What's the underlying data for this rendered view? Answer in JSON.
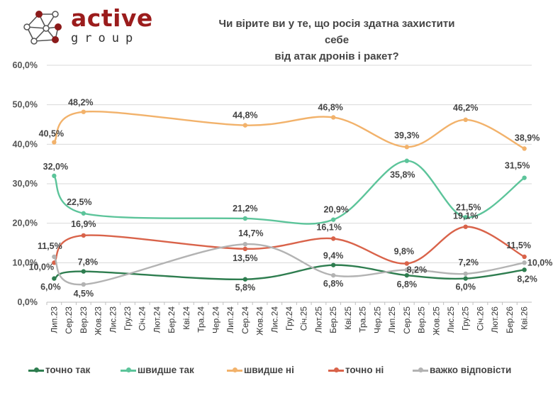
{
  "logo": {
    "word": "active",
    "sub": "group"
  },
  "chart_data": {
    "type": "line",
    "title": "Чи вірите ви у те, що росія здатна захистити себе від атак дронів і ракет?",
    "title_lines": [
      "Чи вірите ви у те, що росія здатна захистити себе",
      "від атак дронів і ракет?"
    ],
    "categories": [
      "Лип.23",
      "Сер.23",
      "Вер.23",
      "Жов.23",
      "Лис.23",
      "Гру.23",
      "Січ.24",
      "Лют.24",
      "Бер.24",
      "Кві.24",
      "Тра.24",
      "Чер.24",
      "Лип.24",
      "Сер.24",
      "Жов.24",
      "Лис.24",
      "Гру.24",
      "Січ.25",
      "Лют.25",
      "Бер.25",
      "Кві.25",
      "Тра.25",
      "Чер.25",
      "Лип.25",
      "Сер.25",
      "Вер.25",
      "Жов.25",
      "Лис.25",
      "Гру.25",
      "Січ.26",
      "Лют.26",
      "Бер.26",
      "Кві.26"
    ],
    "yticks": [
      "0,0%",
      "10,0%",
      "20,0%",
      "30,0%",
      "40,0%",
      "50,0%",
      "60,0%"
    ],
    "ylim": [
      0,
      60
    ],
    "grid": true,
    "legend_position": "bottom",
    "series": [
      {
        "name": "точно так",
        "color": "#2e7d4f",
        "x": [
          "Лип.23",
          "Вер.23",
          "Сер.24",
          "Бер.25",
          "Сер.25",
          "Гру.25",
          "Кві.26"
        ],
        "values": [
          6.0,
          7.8,
          5.8,
          9.4,
          6.8,
          6.0,
          8.2
        ],
        "labels": [
          "6,0%",
          "7,8%",
          "5,8%",
          "9,4%",
          "6,8%",
          "6,0%",
          "8,2%"
        ]
      },
      {
        "name": "швидше так",
        "color": "#5cc49a",
        "x": [
          "Лип.23",
          "Вер.23",
          "Сер.24",
          "Бер.25",
          "Сер.25",
          "Гру.25",
          "Кві.26"
        ],
        "values": [
          32.0,
          22.5,
          21.2,
          20.9,
          35.8,
          21.5,
          31.5
        ],
        "labels": [
          "32,0%",
          "22,5%",
          "21,2%",
          "20,9%",
          "35,8%",
          "21,5%",
          "31,5%"
        ]
      },
      {
        "name": "швидше ні",
        "color": "#f2b26b",
        "x": [
          "Лип.23",
          "Вер.23",
          "Сер.24",
          "Бер.25",
          "Сер.25",
          "Гру.25",
          "Кві.26"
        ],
        "values": [
          40.5,
          48.2,
          44.8,
          46.8,
          39.3,
          46.2,
          38.9
        ],
        "labels": [
          "40,5%",
          "48,2%",
          "44,8%",
          "46,8%",
          "39,3%",
          "46,2%",
          "38,9%"
        ]
      },
      {
        "name": "точно ні",
        "color": "#d9634a",
        "x": [
          "Лип.23",
          "Вер.23",
          "Сер.24",
          "Бер.25",
          "Сер.25",
          "Гру.25",
          "Кві.26"
        ],
        "values": [
          10.0,
          16.9,
          13.5,
          16.1,
          9.8,
          19.1,
          11.5
        ],
        "labels": [
          "10,0%",
          "16,9%",
          "13,5%",
          "16,1%",
          "9,8%",
          "19,1%",
          "11,5%"
        ]
      },
      {
        "name": "важко відповісти",
        "color": "#b3b3b3",
        "x": [
          "Лип.23",
          "Вер.23",
          "Сер.24",
          "Бер.25",
          "Сер.25",
          "Гру.25",
          "Кві.26"
        ],
        "values": [
          11.5,
          4.5,
          14.7,
          6.8,
          8.2,
          7.2,
          10.0
        ],
        "labels": [
          "11,5%",
          "4,5%",
          "14,7%",
          "6,8%",
          "8,2%",
          "7,2%",
          "10,0%"
        ]
      }
    ]
  }
}
